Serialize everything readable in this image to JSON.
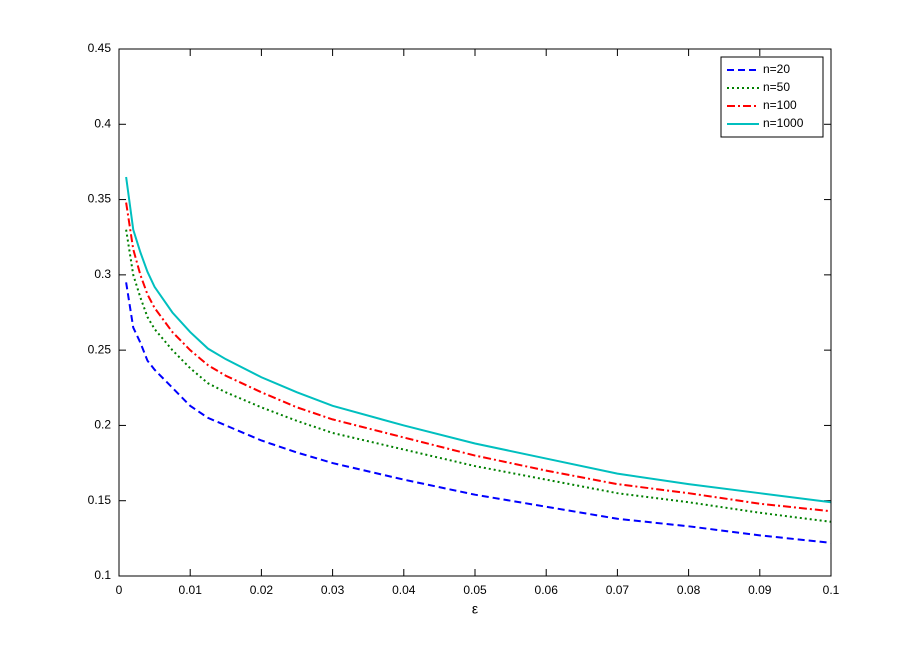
{
  "chart_data": {
    "type": "line",
    "xlabel": "ε",
    "x": [
      0.001,
      0.002,
      0.003,
      0.004,
      0.005,
      0.0075,
      0.01,
      0.0125,
      0.015,
      0.02,
      0.025,
      0.03,
      0.04,
      0.05,
      0.06,
      0.07,
      0.08,
      0.09,
      0.1
    ],
    "series": [
      {
        "name": "n=20",
        "color": "#0000ff",
        "dash": "dashed",
        "values": [
          0.295,
          0.265,
          0.255,
          0.243,
          0.237,
          0.225,
          0.213,
          0.205,
          0.2,
          0.19,
          0.182,
          0.175,
          0.164,
          0.154,
          0.146,
          0.138,
          0.133,
          0.127,
          0.122
        ]
      },
      {
        "name": "n=50",
        "color": "#008000",
        "dash": "dotted",
        "values": [
          0.33,
          0.3,
          0.285,
          0.272,
          0.264,
          0.25,
          0.238,
          0.228,
          0.222,
          0.212,
          0.203,
          0.195,
          0.184,
          0.173,
          0.164,
          0.155,
          0.149,
          0.142,
          0.136
        ]
      },
      {
        "name": "n=100",
        "color": "#ff0000",
        "dash": "dashdot",
        "values": [
          0.348,
          0.317,
          0.3,
          0.287,
          0.278,
          0.262,
          0.25,
          0.24,
          0.233,
          0.222,
          0.212,
          0.204,
          0.192,
          0.18,
          0.17,
          0.161,
          0.155,
          0.148,
          0.143
        ]
      },
      {
        "name": "n=1000",
        "color": "#00bfbf",
        "dash": "solid",
        "values": [
          0.365,
          0.33,
          0.315,
          0.302,
          0.292,
          0.275,
          0.262,
          0.251,
          0.244,
          0.232,
          0.222,
          0.213,
          0.2,
          0.188,
          0.178,
          0.168,
          0.161,
          0.155,
          0.149
        ]
      }
    ],
    "xlim": [
      0,
      0.1
    ],
    "xticks": [
      0,
      0.01,
      0.02,
      0.03,
      0.04,
      0.05,
      0.06,
      0.07,
      0.08,
      0.09,
      0.1
    ],
    "ylim": [
      0.1,
      0.45
    ],
    "yticks": [
      0.1,
      0.15,
      0.2,
      0.25,
      0.3,
      0.35,
      0.4,
      0.45
    ],
    "legend": "northeast"
  }
}
